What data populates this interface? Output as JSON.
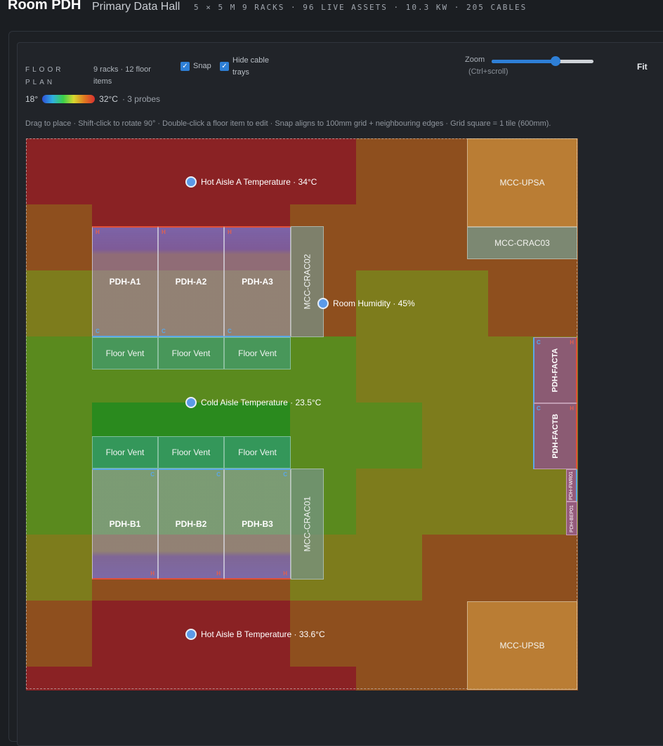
{
  "header": {
    "title": "Room PDH",
    "subtitle": "Primary Data Hall",
    "stats": "5 × 5 M  9 RACKS · 96 LIVE ASSETS · 10.3 KW · 205 CABLES"
  },
  "toolbar": {
    "floor_plan_label": "FLOOR PLAN",
    "summary": "9 racks · 12 floor items",
    "snap_label": "Snap",
    "snap_checked": true,
    "hide_trays_label": "Hide cable trays",
    "hide_trays_checked": true,
    "zoom_label": "Zoom",
    "zoom_hint": "(Ctrl+scroll)",
    "zoom_level": 0.63,
    "fit_label": "Fit"
  },
  "legend": {
    "min": "18°",
    "max": "32°C",
    "probes": "· 3 probes"
  },
  "hint": "Drag to place · Shift-click to rotate 90° · Double-click a floor item to edit · Snap aligns to 100mm grid + neighbouring edges · Grid square = 1 tile (600mm).",
  "racks": {
    "a1": "PDH-A1",
    "a2": "PDH-A2",
    "a3": "PDH-A3",
    "b1": "PDH-B1",
    "b2": "PDH-B2",
    "b3": "PDH-B3"
  },
  "rack_tags": {
    "hot": "H",
    "cold": "C"
  },
  "vents": {
    "label": "Floor Vent"
  },
  "equipment": {
    "crac02": "MCC-CRAC02",
    "crac01": "MCC-CRAC01",
    "crac03": "MCC-CRAC03",
    "upsa": "MCC-UPSA",
    "upsb": "MCC-UPSB",
    "facta": "PDH-FACTA",
    "factb": "PDH-FACTB",
    "fwr01": "PDH-FWR01",
    "bep01": "PDH-BEP01"
  },
  "probes": {
    "hot_a": "Hot Aisle A Temperature · 34°C",
    "humidity": "Room Humidity · 45%",
    "cold": "Cold Aisle Temperature · 23.5°C",
    "hot_b": "Hot Aisle B Temperature · 33.6°C"
  },
  "heatmap_colors": {
    "hot": "#8a2224",
    "orange": "#8e4f1e",
    "yellow": "#7d7c1c",
    "green": "#5a8a1e",
    "cool": "#2a8a1e",
    "dark_bg": "#1c1f23"
  },
  "heatmap_rows": [
    [
      "hot",
      "hot",
      "hot",
      "hot",
      "hot",
      "orange",
      "orange",
      "orange",
      "orange"
    ],
    [
      "orange",
      "hot",
      "hot",
      "hot",
      "orange",
      "orange",
      "orange",
      "orange",
      "orange"
    ],
    [
      "yellow",
      "orange",
      "orange",
      "orange",
      "orange",
      "yellow",
      "yellow",
      "orange",
      "orange"
    ],
    [
      "green",
      "green",
      "green",
      "green",
      "green",
      "yellow",
      "yellow",
      "yellow",
      "yellow"
    ],
    [
      "green",
      "cool",
      "cool",
      "cool",
      "green",
      "green",
      "yellow",
      "yellow",
      "yellow"
    ],
    [
      "green",
      "green",
      "green",
      "green",
      "green",
      "yellow",
      "yellow",
      "yellow",
      "yellow"
    ],
    [
      "yellow",
      "orange",
      "orange",
      "orange",
      "yellow",
      "yellow",
      "orange",
      "orange",
      "orange"
    ],
    [
      "orange",
      "hot",
      "hot",
      "hot",
      "orange",
      "orange",
      "orange",
      "orange",
      "orange"
    ],
    [
      "hot",
      "hot",
      "hot",
      "hot",
      "hot",
      "orange",
      "orange",
      "orange",
      "orange"
    ]
  ]
}
